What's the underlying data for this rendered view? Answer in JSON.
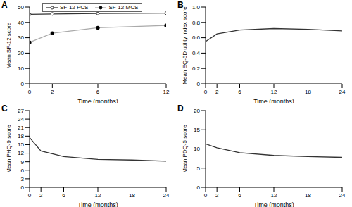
{
  "chart_data": [
    {
      "type": "line",
      "title": "A",
      "xlabel": "Time (months)",
      "ylabel": "Mean SF-12 score",
      "x": [
        0,
        2,
        6,
        12
      ],
      "xlim": [
        0,
        12
      ],
      "xticks": [
        0,
        2,
        6,
        12
      ],
      "ylim": [
        0,
        50
      ],
      "yticks": [
        0,
        10,
        20,
        30,
        40,
        50
      ],
      "grid": false,
      "legend": "top",
      "series": [
        {
          "name": "SF-12 PCS",
          "color": "#333333",
          "marker": "hollow_circle",
          "line_style": "solid",
          "values": [
            45.2,
            45.5,
            45.8,
            46.0
          ]
        },
        {
          "name": "SF-12 MCS",
          "color": "#aaaaaa",
          "marker": "circle",
          "line_style": "solid",
          "values": [
            27.0,
            33.0,
            36.5,
            38.0
          ]
        }
      ]
    },
    {
      "type": "line",
      "title": "B",
      "xlabel": "Time (months)",
      "ylabel": "Mean EQ-5D utility index score",
      "x": [
        0,
        2,
        6,
        12,
        18,
        24
      ],
      "xlim": [
        0,
        24
      ],
      "xticks": [
        0,
        2,
        6,
        12,
        18,
        24
      ],
      "ylim": [
        0,
        1
      ],
      "yticks": [
        0,
        0.2,
        0.4,
        0.6,
        0.8,
        {
          "value": 1,
          "label": "1.0"
        }
      ],
      "grid": false,
      "series": [
        {
          "name": "EQ-5D",
          "color": "#333333",
          "marker": "none",
          "line_style": "solid",
          "values": [
            0.55,
            0.65,
            0.7,
            0.72,
            0.71,
            0.69
          ]
        }
      ]
    },
    {
      "type": "line",
      "title": "C",
      "xlabel": "Time (months)",
      "ylabel": "Mean PHQ-9 score",
      "x": [
        0,
        2,
        6,
        12,
        18,
        24
      ],
      "xlim": [
        0,
        24
      ],
      "xticks": [
        0,
        2,
        6,
        12,
        18,
        24
      ],
      "ylim": [
        0,
        27
      ],
      "yticks": [
        0,
        3,
        6,
        9,
        12,
        15,
        18,
        21,
        24,
        27
      ],
      "grid": false,
      "series": [
        {
          "name": "PHQ-9",
          "color": "#333333",
          "marker": "none",
          "line_style": "solid",
          "values": [
            17.5,
            12.8,
            10.8,
            9.8,
            9.6,
            9.2
          ]
        }
      ]
    },
    {
      "type": "line",
      "title": "D",
      "xlabel": "Time (months)",
      "ylabel": "Mean PDQ-5 score",
      "x": [
        0,
        2,
        6,
        12,
        18,
        24
      ],
      "xlim": [
        0,
        24
      ],
      "xticks": [
        0,
        2,
        6,
        12,
        18,
        24
      ],
      "ylim": [
        0,
        20
      ],
      "yticks": [
        0,
        5,
        10,
        15,
        20
      ],
      "grid": false,
      "series": [
        {
          "name": "PDQ-5",
          "color": "#333333",
          "marker": "none",
          "line_style": "solid",
          "values": [
            11.3,
            10.3,
            9.0,
            8.3,
            8.0,
            7.8
          ]
        }
      ]
    }
  ]
}
